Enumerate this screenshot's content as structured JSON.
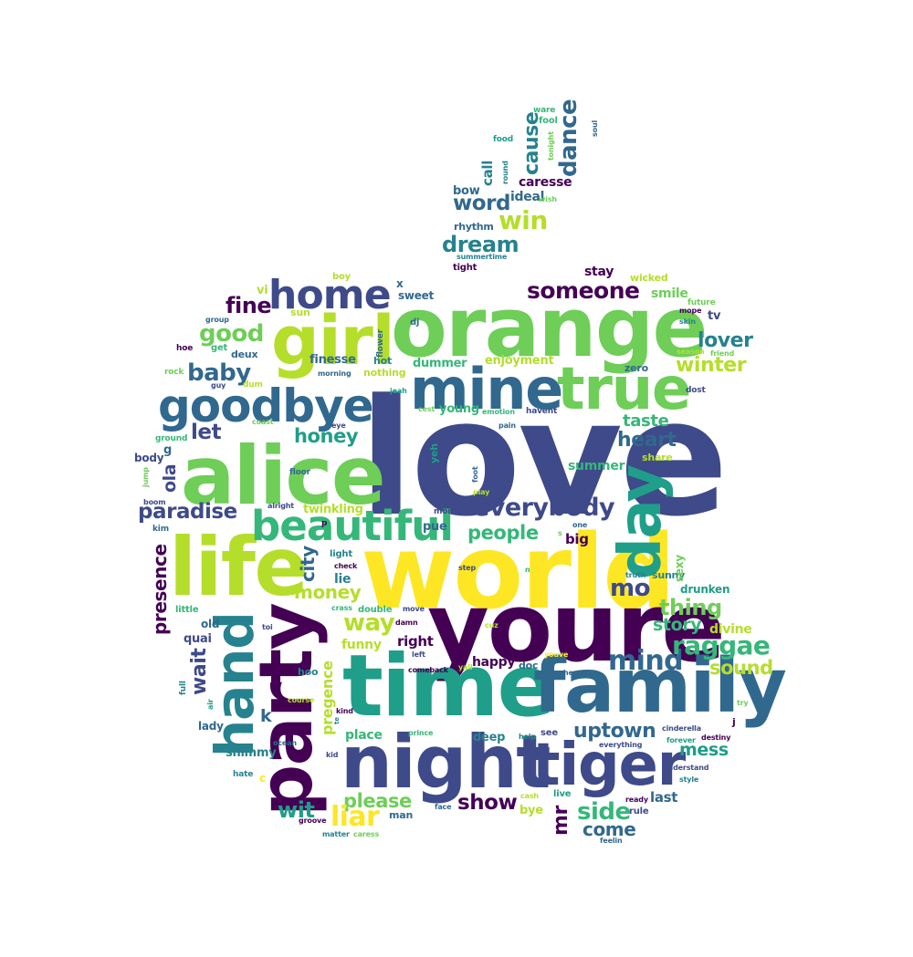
{
  "colors": {
    "dark_purple": "#440154",
    "indigo": "#3e4a89",
    "slate_blue": "#31688e",
    "teal": "#26828e",
    "green_teal": "#1f9e89",
    "emerald": "#35b779",
    "light_green": "#6ece58",
    "yellow_green": "#b5de2b",
    "yellow": "#fde725"
  },
  "words": [
    {
      "text": "love",
      "color": "#3e4a89"
    },
    {
      "text": "world",
      "color": "#fde725"
    },
    {
      "text": "youre",
      "color": "#440154"
    },
    {
      "text": "orange",
      "color": "#6ece58"
    },
    {
      "text": "time",
      "color": "#1f9e89"
    },
    {
      "text": "family",
      "color": "#31688e"
    },
    {
      "text": "night",
      "color": "#3e4a89"
    },
    {
      "text": "alice",
      "color": "#6ece58"
    },
    {
      "text": "life",
      "color": "#b5de2b"
    },
    {
      "text": "party",
      "color": "#440154"
    },
    {
      "text": "girl",
      "color": "#b5de2b"
    },
    {
      "text": "mine",
      "color": "#31688e"
    },
    {
      "text": "true",
      "color": "#6ece58"
    },
    {
      "text": "goodbye",
      "color": "#31688e"
    },
    {
      "text": "tiger",
      "color": "#3e4a89"
    },
    {
      "text": "beautiful",
      "color": "#35b779"
    },
    {
      "text": "day",
      "color": "#1f9e89"
    },
    {
      "text": "hand",
      "color": "#26828e"
    },
    {
      "text": "home",
      "color": "#3e4a89"
    },
    {
      "text": "everybody",
      "color": "#3e4a89"
    },
    {
      "text": "mind",
      "color": "#31688e"
    },
    {
      "text": "raggae",
      "color": "#35b779"
    },
    {
      "text": "someone",
      "color": "#440154"
    },
    {
      "text": "word",
      "color": "#31688e"
    },
    {
      "text": "win",
      "color": "#b5de2b"
    },
    {
      "text": "dream",
      "color": "#26828e"
    },
    {
      "text": "dance",
      "color": "#31688e"
    },
    {
      "text": "cause",
      "color": "#26828e"
    },
    {
      "text": "call",
      "color": "#26828e"
    },
    {
      "text": "bow",
      "color": "#31688e"
    },
    {
      "text": "ideal",
      "color": "#31688e"
    },
    {
      "text": "caresse",
      "color": "#440154"
    },
    {
      "text": "rhythm",
      "color": "#31688e"
    },
    {
      "text": "summertime",
      "color": "#26828e"
    },
    {
      "text": "tight",
      "color": "#440154"
    },
    {
      "text": "round",
      "color": "#26828e"
    },
    {
      "text": "fool",
      "color": "#35b779"
    },
    {
      "text": "tonight",
      "color": "#6ece58"
    },
    {
      "text": "ware",
      "color": "#35b779"
    },
    {
      "text": "food",
      "color": "#1f9e89"
    },
    {
      "text": "soul",
      "color": "#31688e"
    },
    {
      "text": "wish",
      "color": "#6ece58"
    },
    {
      "text": "fine",
      "color": "#440154"
    },
    {
      "text": "good",
      "color": "#6ece58"
    },
    {
      "text": "baby",
      "color": "#31688e"
    },
    {
      "text": "let",
      "color": "#3e4a89"
    },
    {
      "text": "honey",
      "color": "#1f9e89"
    },
    {
      "text": "heart",
      "color": "#31688e"
    },
    {
      "text": "taste",
      "color": "#35b779"
    },
    {
      "text": "lover",
      "color": "#26828e"
    },
    {
      "text": "winter",
      "color": "#b5de2b"
    },
    {
      "text": "paradise",
      "color": "#3e4a89"
    },
    {
      "text": "people",
      "color": "#35b779"
    },
    {
      "text": "city",
      "color": "#31688e"
    },
    {
      "text": "money",
      "color": "#b5de2b"
    },
    {
      "text": "presence",
      "color": "#440154"
    },
    {
      "text": "ola",
      "color": "#3e4a89"
    },
    {
      "text": "mo",
      "color": "#3e4a89"
    },
    {
      "text": "thing",
      "color": "#6ece58"
    },
    {
      "text": "story",
      "color": "#35b779"
    },
    {
      "text": "sound",
      "color": "#b5de2b"
    },
    {
      "text": "way",
      "color": "#b5de2b"
    },
    {
      "text": "wait",
      "color": "#3e4a89"
    },
    {
      "text": "uptown",
      "color": "#31688e"
    },
    {
      "text": "mess",
      "color": "#1f9e89"
    },
    {
      "text": "side",
      "color": "#35b779"
    },
    {
      "text": "show",
      "color": "#440154"
    },
    {
      "text": "come",
      "color": "#31688e"
    },
    {
      "text": "please",
      "color": "#6ece58"
    },
    {
      "text": "liar",
      "color": "#fde725"
    },
    {
      "text": "wit",
      "color": "#1f9e89"
    },
    {
      "text": "mr",
      "color": "#440154"
    },
    {
      "text": "pregence",
      "color": "#b5de2b"
    },
    {
      "text": "stay",
      "color": "#440154"
    },
    {
      "text": "smile",
      "color": "#6ece58"
    },
    {
      "text": "summer",
      "color": "#35b779"
    },
    {
      "text": "enjoyment",
      "color": "#b5de2b"
    },
    {
      "text": "dummer",
      "color": "#35b779"
    },
    {
      "text": "young",
      "color": "#35b779"
    },
    {
      "text": "finesse",
      "color": "#31688e"
    },
    {
      "text": "sweet",
      "color": "#31688e"
    },
    {
      "text": "twinkling",
      "color": "#b5de2b"
    },
    {
      "text": "pue",
      "color": "#31688e"
    },
    {
      "text": "big",
      "color": "#440154"
    },
    {
      "text": "right",
      "color": "#440154"
    },
    {
      "text": "happy",
      "color": "#440154"
    },
    {
      "text": "funny",
      "color": "#b5de2b"
    },
    {
      "text": "lie",
      "color": "#26828e"
    },
    {
      "text": "quai",
      "color": "#3e4a89"
    },
    {
      "text": "lady",
      "color": "#31688e"
    },
    {
      "text": "shimmy",
      "color": "#26828e"
    },
    {
      "text": "place",
      "color": "#35b779"
    },
    {
      "text": "deep",
      "color": "#26828e"
    },
    {
      "text": "divine",
      "color": "#b5de2b"
    },
    {
      "text": "drunken",
      "color": "#1f9e89"
    },
    {
      "text": "sunny",
      "color": "#26828e"
    },
    {
      "text": "sexy",
      "color": "#6ece58"
    },
    {
      "text": "last",
      "color": "#31688e"
    },
    {
      "text": "bye",
      "color": "#b5de2b"
    },
    {
      "text": "man",
      "color": "#31688e"
    },
    {
      "text": "k",
      "color": "#31688e"
    },
    {
      "text": "old",
      "color": "#31688e"
    },
    {
      "text": "little",
      "color": "#35b779"
    },
    {
      "text": "body",
      "color": "#3e4a89"
    },
    {
      "text": "g",
      "color": "#31688e"
    },
    {
      "text": "zero",
      "color": "#31688e"
    },
    {
      "text": "share",
      "color": "#b5de2b"
    },
    {
      "text": "wicked",
      "color": "#b5de2b"
    },
    {
      "text": "future",
      "color": "#6ece58"
    },
    {
      "text": "mope",
      "color": "#440154"
    },
    {
      "text": "skin",
      "color": "#26828e"
    },
    {
      "text": "tv",
      "color": "#3e4a89"
    },
    {
      "text": "season",
      "color": "#b5de2b"
    },
    {
      "text": "friend",
      "color": "#6ece58"
    },
    {
      "text": "dost",
      "color": "#3e4a89"
    },
    {
      "text": "boy",
      "color": "#b5de2b"
    },
    {
      "text": "vi",
      "color": "#b5de2b"
    },
    {
      "text": "sun",
      "color": "#b5de2b"
    },
    {
      "text": "group",
      "color": "#31688e"
    },
    {
      "text": "get",
      "color": "#35b779"
    },
    {
      "text": "deux",
      "color": "#31688e"
    },
    {
      "text": "hoe",
      "color": "#440154"
    },
    {
      "text": "rock",
      "color": "#6ece58"
    },
    {
      "text": "guy",
      "color": "#3e4a89"
    },
    {
      "text": "dum",
      "color": "#b5de2b"
    },
    {
      "text": "coast",
      "color": "#6ece58"
    },
    {
      "text": "ground",
      "color": "#35b779"
    },
    {
      "text": "x",
      "color": "#31688e"
    },
    {
      "text": "dj",
      "color": "#31688e"
    },
    {
      "text": "flower",
      "color": "#31688e"
    },
    {
      "text": "hot",
      "color": "#26828e"
    },
    {
      "text": "nothing",
      "color": "#b5de2b"
    },
    {
      "text": "morning",
      "color": "#31688e"
    },
    {
      "text": "jeah",
      "color": "#1f9e89"
    },
    {
      "text": "h",
      "color": "#3e4a89"
    },
    {
      "text": "eye",
      "color": "#3e4a89"
    },
    {
      "text": "cest",
      "color": "#6ece58"
    },
    {
      "text": "emotion",
      "color": "#35b779"
    },
    {
      "text": "havent",
      "color": "#3e4a89"
    },
    {
      "text": "pain",
      "color": "#31688e"
    },
    {
      "text": "yeh",
      "color": "#1f9e89"
    },
    {
      "text": "foot",
      "color": "#31688e"
    },
    {
      "text": "floor",
      "color": "#31688e"
    },
    {
      "text": "alright",
      "color": "#3e4a89"
    },
    {
      "text": "play",
      "color": "#b5de2b"
    },
    {
      "text": "p",
      "color": "#440154"
    },
    {
      "text": "moi",
      "color": "#3e4a89"
    },
    {
      "text": "one",
      "color": "#31688e"
    },
    {
      "text": "s",
      "color": "#6ece58"
    },
    {
      "text": "jump",
      "color": "#6ece58"
    },
    {
      "text": "boom",
      "color": "#3e4a89"
    },
    {
      "text": "kim",
      "color": "#31688e"
    },
    {
      "text": "light",
      "color": "#26828e"
    },
    {
      "text": "check",
      "color": "#440154"
    },
    {
      "text": "step",
      "color": "#3e4a89"
    },
    {
      "text": "n",
      "color": "#35b779"
    },
    {
      "text": "truth",
      "color": "#26828e"
    },
    {
      "text": "crass",
      "color": "#35b779"
    },
    {
      "text": "double",
      "color": "#35b779"
    },
    {
      "text": "move",
      "color": "#3e4a89"
    },
    {
      "text": "toi",
      "color": "#3e4a89"
    },
    {
      "text": "damn",
      "color": "#440154"
    },
    {
      "text": "cuz",
      "color": "#b5de2b"
    },
    {
      "text": "left",
      "color": "#3e4a89"
    },
    {
      "text": "youve",
      "color": "#fde725"
    },
    {
      "text": "comeback",
      "color": "#440154"
    },
    {
      "text": "yall",
      "color": "#b5de2b"
    },
    {
      "text": "doc",
      "color": "#31688e"
    },
    {
      "text": "he",
      "color": "#31688e"
    },
    {
      "text": "hoo",
      "color": "#26828e"
    },
    {
      "text": "full",
      "color": "#26828e"
    },
    {
      "text": "air",
      "color": "#1f9e89"
    },
    {
      "text": "course",
      "color": "#b5de2b"
    },
    {
      "text": "te",
      "color": "#26828e"
    },
    {
      "text": "kind",
      "color": "#440154"
    },
    {
      "text": "prince",
      "color": "#35b779"
    },
    {
      "text": "help",
      "color": "#26828e"
    },
    {
      "text": "see",
      "color": "#3e4a89"
    },
    {
      "text": "j",
      "color": "#440154"
    },
    {
      "text": "cinderella",
      "color": "#3e4a89"
    },
    {
      "text": "destiny",
      "color": "#440154"
    },
    {
      "text": "try",
      "color": "#6ece58"
    },
    {
      "text": "everything",
      "color": "#3e4a89"
    },
    {
      "text": "forever",
      "color": "#1f9e89"
    },
    {
      "text": "ocean",
      "color": "#31688e"
    },
    {
      "text": "kid",
      "color": "#3e4a89"
    },
    {
      "text": "hate",
      "color": "#26828e"
    },
    {
      "text": "c",
      "color": "#fde725"
    },
    {
      "text": "understand",
      "color": "#3e4a89"
    },
    {
      "text": "style",
      "color": "#26828e"
    },
    {
      "text": "groove",
      "color": "#440154"
    },
    {
      "text": "matter",
      "color": "#26828e"
    },
    {
      "text": "caress",
      "color": "#6ece58"
    },
    {
      "text": "face",
      "color": "#31688e"
    },
    {
      "text": "cash",
      "color": "#b5de2b"
    },
    {
      "text": "live",
      "color": "#1f9e89"
    },
    {
      "text": "ready",
      "color": "#440154"
    },
    {
      "text": "rule",
      "color": "#3e4a89"
    },
    {
      "text": "feelin",
      "color": "#31688e"
    }
  ]
}
